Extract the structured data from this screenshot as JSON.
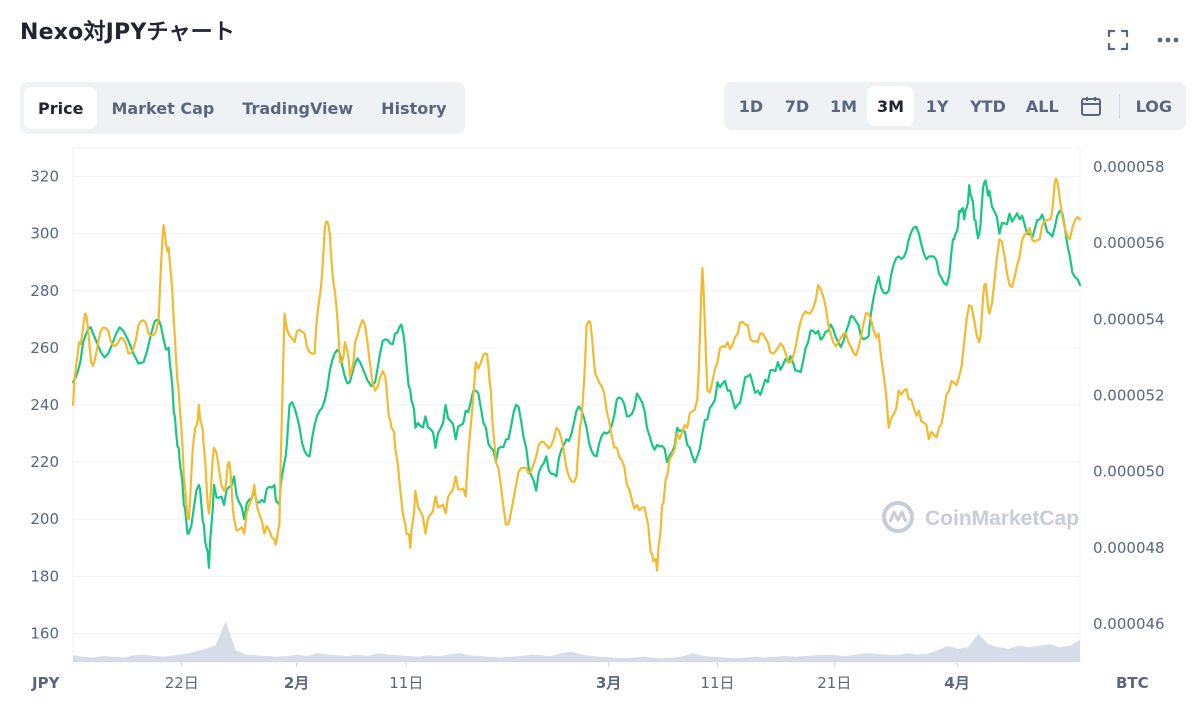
{
  "title": "Nexo対JPYチャート",
  "tabs": [
    {
      "label": "Price",
      "active": true
    },
    {
      "label": "Market Cap",
      "active": false
    },
    {
      "label": "TradingView",
      "active": false
    },
    {
      "label": "History",
      "active": false
    }
  ],
  "ranges": [
    {
      "label": "1D",
      "active": false
    },
    {
      "label": "7D",
      "active": false
    },
    {
      "label": "1M",
      "active": false
    },
    {
      "label": "3M",
      "active": true
    },
    {
      "label": "1Y",
      "active": false
    },
    {
      "label": "YTD",
      "active": false
    },
    {
      "label": "ALL",
      "active": false
    }
  ],
  "log_label": "LOG",
  "icons": {
    "fullscreen": "fullscreen-icon",
    "more": "more-dots-icon",
    "calendar": "calendar-icon"
  },
  "watermark": "CoinMarketCap",
  "colors": {
    "jpy_line": "#16c784",
    "btc_line": "#f3ba2f",
    "volume": "#cfd6e4"
  },
  "chart_data": {
    "type": "line",
    "left_axis": {
      "unit": "JPY",
      "ticks": [
        160,
        180,
        200,
        220,
        240,
        260,
        280,
        300,
        320
      ],
      "range": [
        150,
        330
      ]
    },
    "right_axis": {
      "unit": "BTC",
      "ticks": [
        "0.000046",
        "0.000048",
        "0.000050",
        "0.000052",
        "0.000054",
        "0.000056",
        "0.000058"
      ],
      "range": [
        4.5e-05,
        5.85e-05
      ]
    },
    "x_ticks": [
      {
        "label": "22日",
        "t": 0.108,
        "bold": false
      },
      {
        "label": "2月",
        "t": 0.222,
        "bold": true
      },
      {
        "label": "11日",
        "t": 0.331,
        "bold": false
      },
      {
        "label": "3月",
        "t": 0.532,
        "bold": true
      },
      {
        "label": "11日",
        "t": 0.64,
        "bold": false
      },
      {
        "label": "21日",
        "t": 0.756,
        "bold": false
      },
      {
        "label": "4月",
        "t": 0.878,
        "bold": true
      }
    ],
    "series": [
      {
        "color": "#16c784",
        "axis": "left",
        "points": [
          [
            0,
            248
          ],
          [
            0.01,
            262
          ],
          [
            0.02,
            265
          ],
          [
            0.035,
            258
          ],
          [
            0.05,
            266
          ],
          [
            0.07,
            255
          ],
          [
            0.085,
            270
          ],
          [
            0.095,
            260
          ],
          [
            0.1,
            238
          ],
          [
            0.105,
            225
          ],
          [
            0.11,
            205
          ],
          [
            0.115,
            195
          ],
          [
            0.125,
            212
          ],
          [
            0.13,
            198
          ],
          [
            0.135,
            183
          ],
          [
            0.14,
            212
          ],
          [
            0.15,
            205
          ],
          [
            0.16,
            215
          ],
          [
            0.17,
            200
          ],
          [
            0.18,
            210
          ],
          [
            0.19,
            206
          ],
          [
            0.2,
            212
          ],
          [
            0.205,
            205
          ],
          [
            0.21,
            220
          ],
          [
            0.215,
            240
          ],
          [
            0.225,
            232
          ],
          [
            0.235,
            222
          ],
          [
            0.245,
            238
          ],
          [
            0.255,
            252
          ],
          [
            0.265,
            258
          ],
          [
            0.275,
            248
          ],
          [
            0.285,
            255
          ],
          [
            0.3,
            248
          ],
          [
            0.31,
            263
          ],
          [
            0.32,
            265
          ],
          [
            0.328,
            265
          ],
          [
            0.335,
            245
          ],
          [
            0.34,
            232
          ],
          [
            0.35,
            236
          ],
          [
            0.36,
            225
          ],
          [
            0.37,
            240
          ],
          [
            0.38,
            228
          ],
          [
            0.39,
            238
          ],
          [
            0.4,
            245
          ],
          [
            0.41,
            232
          ],
          [
            0.42,
            220
          ],
          [
            0.43,
            228
          ],
          [
            0.44,
            240
          ],
          [
            0.45,
            225
          ],
          [
            0.46,
            210
          ],
          [
            0.47,
            222
          ],
          [
            0.48,
            215
          ],
          [
            0.49,
            228
          ],
          [
            0.5,
            238
          ],
          [
            0.51,
            232
          ],
          [
            0.52,
            222
          ],
          [
            0.53,
            230
          ],
          [
            0.54,
            242
          ],
          [
            0.55,
            236
          ],
          [
            0.56,
            244
          ],
          [
            0.57,
            232
          ],
          [
            0.58,
            226
          ],
          [
            0.59,
            220
          ],
          [
            0.6,
            232
          ],
          [
            0.61,
            226
          ],
          [
            0.62,
            222
          ],
          [
            0.63,
            235
          ],
          [
            0.64,
            248
          ],
          [
            0.65,
            245
          ],
          [
            0.66,
            240
          ],
          [
            0.67,
            250
          ],
          [
            0.68,
            245
          ],
          [
            0.69,
            248
          ],
          [
            0.7,
            255
          ],
          [
            0.71,
            255
          ],
          [
            0.72,
            252
          ],
          [
            0.73,
            262
          ],
          [
            0.74,
            266
          ],
          [
            0.75,
            266
          ],
          [
            0.76,
            262
          ],
          [
            0.77,
            268
          ],
          [
            0.78,
            268
          ],
          [
            0.79,
            264
          ],
          [
            0.8,
            285
          ],
          [
            0.81,
            280
          ],
          [
            0.82,
            292
          ],
          [
            0.83,
            298
          ],
          [
            0.84,
            300
          ],
          [
            0.85,
            292
          ],
          [
            0.86,
            286
          ],
          [
            0.87,
            285
          ],
          [
            0.875,
            298
          ],
          [
            0.88,
            308
          ],
          [
            0.885,
            305
          ],
          [
            0.89,
            317
          ],
          [
            0.895,
            305
          ],
          [
            0.9,
            300
          ],
          [
            0.905,
            318
          ],
          [
            0.91,
            315
          ],
          [
            0.92,
            300
          ],
          [
            0.93,
            307
          ],
          [
            0.94,
            305
          ],
          [
            0.95,
            300
          ],
          [
            0.96,
            305
          ],
          [
            0.97,
            300
          ],
          [
            0.98,
            308
          ],
          [
            0.99,
            292
          ],
          [
            1,
            282
          ]
        ]
      },
      {
        "color": "#f3ba2f",
        "axis": "left",
        "points": [
          [
            0,
            240
          ],
          [
            0.006,
            262
          ],
          [
            0.012,
            272
          ],
          [
            0.018,
            255
          ],
          [
            0.025,
            262
          ],
          [
            0.035,
            266
          ],
          [
            0.045,
            262
          ],
          [
            0.055,
            258
          ],
          [
            0.065,
            268
          ],
          [
            0.075,
            265
          ],
          [
            0.085,
            270
          ],
          [
            0.09,
            303
          ],
          [
            0.095,
            295
          ],
          [
            0.1,
            270
          ],
          [
            0.105,
            245
          ],
          [
            0.11,
            215
          ],
          [
            0.115,
            200
          ],
          [
            0.12,
            228
          ],
          [
            0.125,
            240
          ],
          [
            0.13,
            225
          ],
          [
            0.135,
            202
          ],
          [
            0.14,
            225
          ],
          [
            0.15,
            210
          ],
          [
            0.155,
            220
          ],
          [
            0.16,
            200
          ],
          [
            0.17,
            195
          ],
          [
            0.18,
            212
          ],
          [
            0.19,
            195
          ],
          [
            0.2,
            193
          ],
          [
            0.205,
            198
          ],
          [
            0.21,
            272
          ],
          [
            0.22,
            262
          ],
          [
            0.23,
            265
          ],
          [
            0.24,
            258
          ],
          [
            0.245,
            278
          ],
          [
            0.25,
            302
          ],
          [
            0.255,
            300
          ],
          [
            0.26,
            280
          ],
          [
            0.265,
            255
          ],
          [
            0.27,
            262
          ],
          [
            0.275,
            250
          ],
          [
            0.28,
            262
          ],
          [
            0.29,
            268
          ],
          [
            0.3,
            245
          ],
          [
            0.31,
            250
          ],
          [
            0.315,
            235
          ],
          [
            0.32,
            225
          ],
          [
            0.33,
            198
          ],
          [
            0.335,
            190
          ],
          [
            0.34,
            210
          ],
          [
            0.35,
            195
          ],
          [
            0.36,
            208
          ],
          [
            0.37,
            202
          ],
          [
            0.38,
            215
          ],
          [
            0.39,
            208
          ],
          [
            0.4,
            255
          ],
          [
            0.41,
            258
          ],
          [
            0.415,
            245
          ],
          [
            0.42,
            220
          ],
          [
            0.43,
            198
          ],
          [
            0.44,
            212
          ],
          [
            0.45,
            218
          ],
          [
            0.46,
            222
          ],
          [
            0.47,
            226
          ],
          [
            0.48,
            232
          ],
          [
            0.49,
            218
          ],
          [
            0.5,
            215
          ],
          [
            0.505,
            235
          ],
          [
            0.51,
            268
          ],
          [
            0.515,
            265
          ],
          [
            0.52,
            250
          ],
          [
            0.53,
            238
          ],
          [
            0.54,
            225
          ],
          [
            0.55,
            212
          ],
          [
            0.56,
            205
          ],
          [
            0.57,
            200
          ],
          [
            0.575,
            188
          ],
          [
            0.58,
            182
          ],
          [
            0.585,
            205
          ],
          [
            0.59,
            215
          ],
          [
            0.6,
            230
          ],
          [
            0.61,
            232
          ],
          [
            0.62,
            242
          ],
          [
            0.625,
            288
          ],
          [
            0.63,
            245
          ],
          [
            0.64,
            255
          ],
          [
            0.65,
            262
          ],
          [
            0.66,
            265
          ],
          [
            0.67,
            268
          ],
          [
            0.68,
            262
          ],
          [
            0.69,
            262
          ],
          [
            0.7,
            260
          ],
          [
            0.71,
            255
          ],
          [
            0.72,
            265
          ],
          [
            0.73,
            272
          ],
          [
            0.74,
            282
          ],
          [
            0.75,
            268
          ],
          [
            0.76,
            262
          ],
          [
            0.77,
            262
          ],
          [
            0.78,
            260
          ],
          [
            0.79,
            272
          ],
          [
            0.8,
            265
          ],
          [
            0.81,
            232
          ],
          [
            0.82,
            245
          ],
          [
            0.83,
            242
          ],
          [
            0.84,
            238
          ],
          [
            0.85,
            228
          ],
          [
            0.86,
            232
          ],
          [
            0.87,
            245
          ],
          [
            0.88,
            250
          ],
          [
            0.89,
            275
          ],
          [
            0.9,
            262
          ],
          [
            0.905,
            282
          ],
          [
            0.91,
            272
          ],
          [
            0.92,
            298
          ],
          [
            0.93,
            282
          ],
          [
            0.94,
            292
          ],
          [
            0.95,
            302
          ],
          [
            0.96,
            298
          ],
          [
            0.97,
            305
          ],
          [
            0.975,
            318
          ],
          [
            0.98,
            312
          ],
          [
            0.99,
            298
          ],
          [
            1,
            305
          ]
        ]
      }
    ],
    "volume": {
      "levels": [
        0.09,
        0.07,
        0.06,
        0.08,
        0.07,
        0.06,
        0.09,
        0.1,
        0.08,
        0.07,
        0.09,
        0.11,
        0.14,
        0.18,
        0.22,
        0.55,
        0.16,
        0.1,
        0.09,
        0.08,
        0.07,
        0.08,
        0.1,
        0.08,
        0.12,
        0.1,
        0.09,
        0.08,
        0.1,
        0.08,
        0.12,
        0.1,
        0.09,
        0.08,
        0.07,
        0.09,
        0.08,
        0.1,
        0.12,
        0.09,
        0.08,
        0.07,
        0.06,
        0.07,
        0.08,
        0.1,
        0.09,
        0.08,
        0.12,
        0.14,
        0.1,
        0.08,
        0.07,
        0.06,
        0.05,
        0.06,
        0.07,
        0.06,
        0.05,
        0.06,
        0.08,
        0.12,
        0.08,
        0.07,
        0.06,
        0.05,
        0.06,
        0.07,
        0.06,
        0.07,
        0.08,
        0.07,
        0.08,
        0.09,
        0.1,
        0.09,
        0.08,
        0.1,
        0.12,
        0.11,
        0.1,
        0.09,
        0.12,
        0.1,
        0.11,
        0.16,
        0.22,
        0.18,
        0.2,
        0.38,
        0.24,
        0.2,
        0.18,
        0.22,
        0.2,
        0.22,
        0.24,
        0.2,
        0.22,
        0.3
      ]
    }
  }
}
